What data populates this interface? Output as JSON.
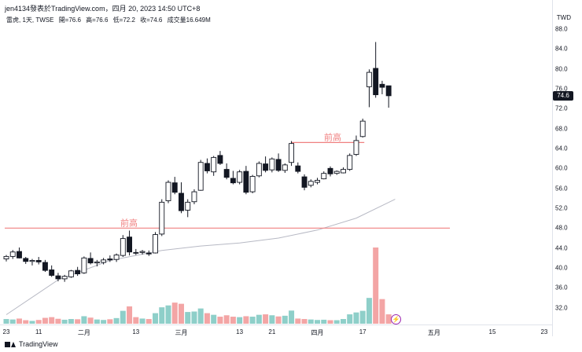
{
  "header": {
    "title": "jen4134發表於TradingView.com，四月 20, 2023 14:50 UTC+8"
  },
  "legend": {
    "symbol": "雷虎, 1天, TWSE",
    "open": "開=76.6",
    "high": "高=76.6",
    "low": "低=72.2",
    "close": "收=74.6",
    "volume": "成交量16.649M"
  },
  "currency": "TWD",
  "last_price": "74.6",
  "footer": {
    "brand": "TradingView"
  },
  "annotations": {
    "prev_high_1": "前高",
    "prev_high_2": "前高"
  },
  "colors": {
    "up_volume": "#8ecfc9",
    "down_volume": "#f3a5a5",
    "candle_down": "#131722",
    "candle_up": "#ffffff",
    "ma_line": "#b7b9c4",
    "annotation": "#f08080",
    "flash": "#9c27b0"
  },
  "icons": {
    "footer_logo": "tradingview-logo-icon",
    "flash": "flash-icon"
  },
  "chart_data": {
    "type": "candlestick",
    "title": "",
    "price_ticks": [
      "88.0",
      "84.0",
      "80.0",
      "76.0",
      "72.0",
      "68.0",
      "64.0",
      "60.0",
      "56.0",
      "52.0",
      "48.0",
      "44.0",
      "40.0",
      "36.0",
      "32.0"
    ],
    "price_tick_values": [
      88,
      84,
      80,
      76,
      72,
      68,
      64,
      60,
      56,
      52,
      48,
      44,
      40,
      36,
      32
    ],
    "time_ticks": [
      "23",
      "11",
      "二月",
      "13",
      "三月",
      "13",
      "21",
      "四月",
      "17",
      "五月",
      "15",
      "23"
    ],
    "time_tick_index": [
      0,
      5,
      12,
      20,
      27,
      36,
      41,
      48,
      55,
      66,
      75,
      83
    ],
    "ylim": [
      30,
      90
    ],
    "resistance_levels": [
      48.0,
      65.2
    ],
    "ohlcv": [
      [
        41.8,
        42.6,
        41.3,
        42.3,
        2.0
      ],
      [
        42.3,
        43.6,
        41.8,
        43.2,
        1.8
      ],
      [
        43.3,
        44.1,
        41.9,
        42.0,
        2.2
      ],
      [
        41.9,
        42.2,
        40.8,
        41.3,
        1.5
      ],
      [
        41.3,
        41.8,
        40.5,
        41.5,
        1.2
      ],
      [
        41.5,
        42.2,
        40.7,
        41.2,
        1.6
      ],
      [
        41.1,
        41.6,
        39.2,
        39.5,
        2.5
      ],
      [
        39.6,
        40.5,
        38.2,
        38.5,
        2.8
      ],
      [
        38.4,
        39.0,
        37.3,
        37.8,
        2.1
      ],
      [
        37.8,
        38.6,
        37.2,
        38.3,
        1.7
      ],
      [
        38.2,
        39.6,
        38.0,
        39.4,
        2.0
      ],
      [
        39.5,
        40.2,
        38.4,
        38.8,
        1.9
      ],
      [
        39.0,
        42.3,
        38.8,
        42.0,
        3.2
      ],
      [
        41.9,
        43.1,
        40.7,
        41.0,
        2.6
      ],
      [
        41.0,
        41.6,
        40.3,
        41.2,
        1.8
      ],
      [
        41.1,
        42.0,
        40.7,
        41.6,
        1.6
      ],
      [
        41.8,
        42.5,
        41.2,
        41.6,
        1.9
      ],
      [
        41.7,
        42.9,
        41.2,
        42.6,
        2.4
      ],
      [
        42.5,
        46.6,
        42.2,
        45.9,
        5.5
      ],
      [
        46.2,
        47.5,
        42.5,
        43.2,
        7.4
      ],
      [
        43.1,
        43.8,
        42.6,
        43.0,
        2.8
      ],
      [
        43.1,
        43.6,
        42.7,
        43.3,
        2.2
      ],
      [
        43.0,
        43.5,
        42.4,
        42.8,
        2.0
      ],
      [
        43.0,
        47.2,
        42.9,
        46.7,
        4.5
      ],
      [
        46.8,
        53.8,
        46.4,
        53.2,
        7.0
      ],
      [
        53.5,
        57.6,
        53.0,
        57.2,
        7.8
      ],
      [
        57.1,
        58.3,
        54.8,
        55.2,
        9.0
      ],
      [
        55.0,
        57.2,
        51.0,
        51.5,
        8.5
      ],
      [
        51.6,
        53.8,
        50.2,
        53.2,
        5.0
      ],
      [
        53.3,
        55.8,
        52.8,
        55.3,
        5.2
      ],
      [
        55.6,
        61.7,
        55.5,
        61.2,
        6.5
      ],
      [
        61.0,
        62.0,
        59.0,
        59.5,
        4.5
      ],
      [
        59.3,
        62.5,
        58.5,
        62.2,
        3.8
      ],
      [
        62.6,
        63.5,
        60.7,
        61.0,
        3.0
      ],
      [
        59.8,
        61.0,
        57.8,
        58.2,
        3.6
      ],
      [
        58.0,
        59.5,
        56.8,
        57.1,
        3.0
      ],
      [
        57.2,
        59.7,
        56.8,
        59.3,
        2.8
      ],
      [
        59.4,
        60.5,
        54.8,
        55.2,
        3.2
      ],
      [
        55.3,
        58.7,
        55.0,
        58.4,
        3.0
      ],
      [
        58.5,
        61.4,
        58.2,
        61.0,
        3.8
      ],
      [
        60.9,
        62.4,
        59.2,
        59.6,
        4.0
      ],
      [
        59.7,
        62.2,
        59.2,
        61.9,
        3.6
      ],
      [
        61.8,
        63.0,
        59.3,
        59.6,
        3.1
      ],
      [
        59.6,
        61.0,
        59.1,
        60.7,
        3.4
      ],
      [
        61.2,
        65.5,
        60.5,
        65.0,
        5.6
      ],
      [
        60.5,
        61.2,
        59.0,
        59.4,
        2.2
      ],
      [
        58.3,
        58.8,
        55.6,
        56.2,
        2.0
      ],
      [
        56.6,
        57.8,
        56.2,
        57.4,
        1.8
      ],
      [
        57.2,
        58.1,
        56.8,
        57.6,
        1.6
      ],
      [
        57.9,
        59.4,
        57.8,
        59.0,
        1.7
      ],
      [
        60.0,
        60.4,
        58.4,
        58.9,
        1.5
      ],
      [
        59.0,
        59.6,
        58.7,
        59.4,
        1.5
      ],
      [
        59.1,
        60.2,
        59.0,
        59.8,
        2.0
      ],
      [
        59.8,
        63.0,
        59.5,
        62.6,
        4.0
      ],
      [
        62.8,
        66.6,
        62.5,
        65.6,
        4.8
      ],
      [
        66.4,
        70.0,
        66.2,
        69.5,
        5.5
      ],
      [
        76.4,
        79.9,
        72.3,
        79.3,
        11.0
      ],
      [
        80.1,
        85.4,
        74.2,
        74.8,
        32.5
      ],
      [
        76.9,
        77.6,
        74.9,
        76.3,
        10.5
      ],
      [
        76.6,
        76.6,
        72.2,
        74.6,
        4.0
      ]
    ],
    "ma_line": [
      [
        0,
        30.6
      ],
      [
        8,
        37.6
      ],
      [
        16,
        41.5
      ],
      [
        24,
        43.5
      ],
      [
        30,
        44.4
      ],
      [
        36,
        45.0
      ],
      [
        42,
        46.0
      ],
      [
        48,
        47.6
      ],
      [
        54,
        50.0
      ],
      [
        60,
        53.8
      ]
    ]
  }
}
